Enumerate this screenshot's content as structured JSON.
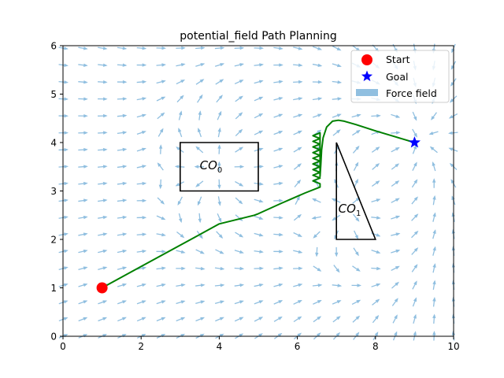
{
  "chart_data": {
    "type": "line",
    "title": "potential_field Path Planning",
    "xlabel": "",
    "ylabel": "",
    "xlim": [
      0,
      10
    ],
    "ylim": [
      0,
      6
    ],
    "xticks": [
      "0",
      "2",
      "4",
      "6",
      "8",
      "10"
    ],
    "yticks": [
      "0",
      "1",
      "2",
      "3",
      "4",
      "5",
      "6"
    ],
    "grid": false,
    "legend_position": "top-right",
    "legend": [
      {
        "label": "Start",
        "marker": "circle",
        "color": "#ff0000"
      },
      {
        "label": "Goal",
        "marker": "star",
        "color": "#0000ff"
      },
      {
        "label": "Force field",
        "marker": "patch",
        "color": "#90bfe0"
      }
    ],
    "start": {
      "x": 1,
      "y": 1
    },
    "goal": {
      "x": 9,
      "y": 4
    },
    "obstacles": [
      {
        "name": "CO",
        "sub": "0",
        "shape": "rectangle",
        "points": [
          [
            3,
            3
          ],
          [
            5,
            3
          ],
          [
            5,
            4
          ],
          [
            3,
            4
          ]
        ],
        "label_at": [
          3.5,
          3.45
        ]
      },
      {
        "name": "CO",
        "sub": "1",
        "shape": "triangle",
        "points": [
          [
            7,
            4
          ],
          [
            7,
            2
          ],
          [
            8,
            2
          ]
        ],
        "label_at": [
          7.05,
          2.55
        ]
      }
    ],
    "series": [
      {
        "color": "#008000",
        "path": [
          [
            1,
            1
          ],
          [
            2,
            1.44
          ],
          [
            3,
            1.88
          ],
          [
            4,
            2.32
          ],
          [
            4.9,
            2.5
          ],
          [
            5,
            2.53
          ],
          [
            5.6,
            2.75
          ],
          [
            6.2,
            2.96
          ],
          [
            6.58,
            3.08
          ],
          [
            6.58,
            3.3
          ],
          [
            6.6,
            3.55
          ],
          [
            6.62,
            3.85
          ],
          [
            6.66,
            4.1
          ],
          [
            6.75,
            4.32
          ],
          [
            6.9,
            4.44
          ],
          [
            7.05,
            4.46
          ],
          [
            7.2,
            4.44
          ],
          [
            7.5,
            4.37
          ],
          [
            8,
            4.24
          ],
          [
            8.5,
            4.12
          ],
          [
            9,
            4
          ]
        ],
        "oscillation": {
          "x_range": [
            6.4,
            6.58
          ],
          "y_range": [
            3.15,
            4.2
          ],
          "turns": 18
        }
      }
    ],
    "force_field": {
      "x_step": 0.5,
      "y_step": 0.35,
      "color": "#90bfe0"
    }
  }
}
